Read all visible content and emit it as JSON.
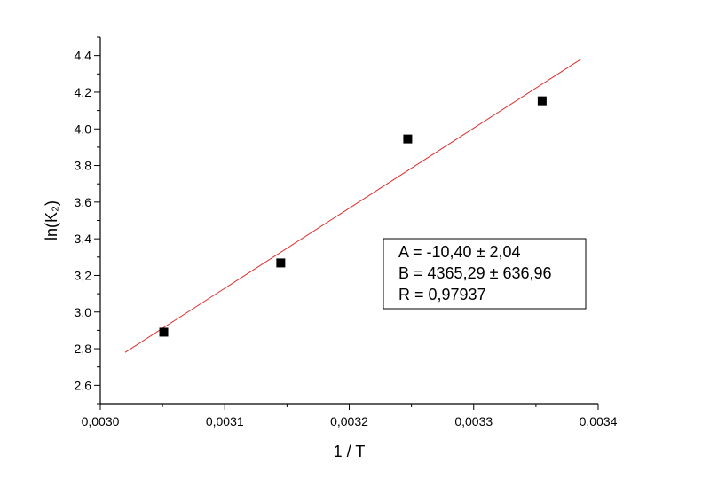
{
  "chart_data": {
    "type": "scatter",
    "xlabel": "1 / T",
    "ylabel": "ln(K₂)",
    "x": [
      0.003051,
      0.003145,
      0.003247,
      0.003355
    ],
    "series": [
      {
        "color": "#000000",
        "values": [
          2.89,
          3.268,
          3.945,
          4.153
        ]
      }
    ],
    "fit_line": {
      "color": "#e03030",
      "x": [
        0.00302,
        0.003386
      ],
      "values": [
        2.78,
        4.38
      ]
    },
    "xlim": [
      0.003,
      0.0034
    ],
    "ylim": [
      2.5,
      4.5
    ],
    "xticks": [
      {
        "value": 0.003,
        "label": "0,0030"
      },
      {
        "value": 0.0031,
        "label": "0,0031"
      },
      {
        "value": 0.0032,
        "label": "0,0032"
      },
      {
        "value": 0.0033,
        "label": "0,0033"
      },
      {
        "value": 0.0034,
        "label": "0,0034"
      }
    ],
    "yticks": [
      {
        "value": 2.6,
        "label": "2,6"
      },
      {
        "value": 2.8,
        "label": "2,8"
      },
      {
        "value": 3.0,
        "label": "3,0"
      },
      {
        "value": 3.2,
        "label": "3,2"
      },
      {
        "value": 3.4,
        "label": "3,4"
      },
      {
        "value": 3.6,
        "label": "3,6"
      },
      {
        "value": 3.8,
        "label": "3,8"
      },
      {
        "value": 4.0,
        "label": "4,0"
      },
      {
        "value": 4.2,
        "label": "4,2"
      },
      {
        "value": 4.4,
        "label": "4,4"
      }
    ],
    "xminorticks": [
      0.00305,
      0.00315,
      0.00325,
      0.00335
    ],
    "yminorticks": [
      2.5,
      2.7,
      2.9,
      3.1,
      3.3,
      3.5,
      3.7,
      3.9,
      4.1,
      4.3,
      4.5
    ],
    "annotation": [
      "A = -10,40 ± 2,04",
      "B = 4365,29 ± 636,96",
      "R = 0,97937"
    ]
  }
}
